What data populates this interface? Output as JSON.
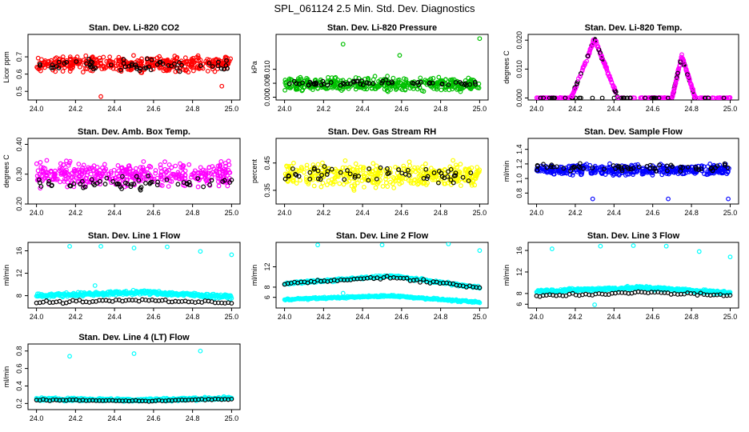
{
  "figure_title": "SPL_061124  2.5 Min. Std. Dev. Diagnostics",
  "colors": {
    "co2": "#ff0000",
    "pressure": "#00c000",
    "temp": "#ff00ff",
    "boxtemp": "#ff00ff",
    "rh": "#ffff00",
    "flow": "#0000ff",
    "line": "#00ffff",
    "highlight": "#000000"
  },
  "chart_data": [
    {
      "id": "co2",
      "type": "scatter",
      "title": "Stan. Dev. Li-820 CO2",
      "ylabel": "Licor ppm",
      "xlim": [
        24.0,
        25.0
      ],
      "ylim": [
        0.45,
        0.83
      ],
      "xticks": [
        24.0,
        24.2,
        24.4,
        24.6,
        24.8,
        25.0
      ],
      "xtick_labels": [
        "24.0",
        "24.2",
        "24.4",
        "24.6",
        "24.8",
        "25.0"
      ],
      "yticks": [
        0.5,
        0.6,
        0.7
      ],
      "ytick_labels": [
        "0.5",
        "0.6",
        "0.7"
      ],
      "color": "co2",
      "series": [
        {
          "name": "main",
          "base": 0.66,
          "spread": 0.06,
          "n": 420
        },
        {
          "name": "highlight",
          "color": "highlight",
          "base": 0.65,
          "spread": 0.05,
          "n": 60
        }
      ],
      "outliers": [
        [
          24.33,
          0.47
        ],
        [
          24.95,
          0.53
        ]
      ]
    },
    {
      "id": "pressure",
      "type": "scatter",
      "title": "Stan. Dev. Li-820 Pressure",
      "ylabel": "kPa",
      "xlim": [
        24.0,
        25.0
      ],
      "ylim": [
        -0.001,
        0.0225
      ],
      "xticks": [
        24.0,
        24.2,
        24.4,
        24.6,
        24.8,
        25.0
      ],
      "xtick_labels": [
        "24.0",
        "24.2",
        "24.4",
        "24.6",
        "24.8",
        "25.0"
      ],
      "yticks": [
        0.0,
        0.005,
        0.01
      ],
      "ytick_labels": [
        "0.000",
        "0.005",
        "0.010"
      ],
      "color": "pressure",
      "series": [
        {
          "name": "main",
          "base": 0.0045,
          "spread": 0.0035,
          "n": 420
        },
        {
          "name": "highlight",
          "color": "highlight",
          "base": 0.005,
          "spread": 0.0015,
          "n": 60
        }
      ],
      "outliers": [
        [
          24.3,
          0.019
        ],
        [
          24.59,
          0.015
        ],
        [
          25.0,
          0.021
        ]
      ]
    },
    {
      "id": "temp",
      "type": "scatter",
      "title": "Stan. Dev. Li-820 Temp.",
      "ylabel": "degrees C",
      "xlim": [
        24.0,
        25.0
      ],
      "ylim": [
        -0.0007,
        0.022
      ],
      "xticks": [
        24.0,
        24.2,
        24.4,
        24.6,
        24.8,
        25.0
      ],
      "xtick_labels": [
        "24.0",
        "24.2",
        "24.4",
        "24.6",
        "24.8",
        "25.0"
      ],
      "yticks": [
        0.0,
        0.01,
        0.02
      ],
      "ytick_labels": [
        "0.000",
        "0.010",
        "0.020"
      ],
      "color": "temp",
      "peaks": [
        {
          "start": 24.18,
          "center": 24.3,
          "end": 24.42,
          "height": 0.0205
        },
        {
          "start": 24.7,
          "center": 24.75,
          "end": 24.82,
          "height": 0.0145
        }
      ],
      "baseline": 0.0
    },
    {
      "id": "boxtemp",
      "type": "scatter",
      "title": "Stan. Dev. Amb. Box Temp.",
      "ylabel": "degrees C",
      "xlim": [
        24.0,
        25.0
      ],
      "ylim": [
        0.2,
        0.42
      ],
      "xticks": [
        24.0,
        24.2,
        24.4,
        24.6,
        24.8,
        25.0
      ],
      "xtick_labels": [
        "24.0",
        "24.2",
        "24.4",
        "24.6",
        "24.8",
        "25.0"
      ],
      "yticks": [
        0.2,
        0.3,
        0.4
      ],
      "ytick_labels": [
        "0.20",
        "0.30",
        "0.40"
      ],
      "color": "boxtemp",
      "series": [
        {
          "name": "main",
          "base": 0.3,
          "spread": 0.055,
          "n": 420
        },
        {
          "name": "highlight",
          "color": "highlight",
          "base": 0.27,
          "spread": 0.03,
          "n": 60
        }
      ]
    },
    {
      "id": "rh",
      "type": "scatter",
      "title": "Stan. Dev. Gas Stream RH",
      "ylabel": "percent",
      "xlim": [
        24.0,
        25.0
      ],
      "ylim": [
        0.3,
        0.54
      ],
      "xticks": [
        24.0,
        24.2,
        24.4,
        24.6,
        24.8,
        25.0
      ],
      "xtick_labels": [
        "24.0",
        "24.2",
        "24.4",
        "24.6",
        "24.8",
        "25.0"
      ],
      "yticks": [
        0.35,
        0.45
      ],
      "ytick_labels": [
        "0.35",
        "0.45"
      ],
      "color": "rh",
      "series": [
        {
          "name": "main",
          "base": 0.405,
          "spread": 0.06,
          "n": 420
        },
        {
          "name": "highlight",
          "color": "highlight",
          "base": 0.41,
          "spread": 0.04,
          "n": 60
        }
      ]
    },
    {
      "id": "sampleflow",
      "type": "scatter",
      "title": "Stan. Dev. Sample Flow",
      "ylabel": "ml/min",
      "xlim": [
        24.0,
        25.0
      ],
      "ylim": [
        0.65,
        1.55
      ],
      "xticks": [
        24.0,
        24.2,
        24.4,
        24.6,
        24.8,
        25.0
      ],
      "xtick_labels": [
        "24.0",
        "24.2",
        "24.4",
        "24.6",
        "24.8",
        "25.0"
      ],
      "yticks": [
        0.8,
        1.0,
        1.2,
        1.4
      ],
      "ytick_labels": [
        "0.8",
        "1.0",
        "1.2",
        "1.4"
      ],
      "color": "flow",
      "series": [
        {
          "name": "main",
          "base": 1.12,
          "spread": 0.1,
          "n": 420
        },
        {
          "name": "highlight",
          "color": "highlight",
          "base": 1.15,
          "spread": 0.08,
          "n": 60
        }
      ],
      "outliers": [
        [
          24.29,
          0.72
        ],
        [
          24.68,
          0.72
        ],
        [
          24.99,
          0.72
        ]
      ]
    },
    {
      "id": "line1",
      "type": "scatter",
      "title": "Stan. Dev. Line 1 Flow",
      "ylabel": "ml/min",
      "xlim": [
        24.0,
        25.0
      ],
      "ylim": [
        5.8,
        17.5
      ],
      "xticks": [
        24.0,
        24.2,
        24.4,
        24.6,
        24.8,
        25.0
      ],
      "xtick_labels": [
        "24.0",
        "24.2",
        "24.4",
        "24.6",
        "24.8",
        "25.0"
      ],
      "yticks": [
        8,
        12,
        16
      ],
      "ytick_labels": [
        "8",
        "12",
        "16"
      ],
      "color": "line",
      "bands": [
        {
          "color": "line",
          "y0": 8.0,
          "ymid": 8.6,
          "y1": 7.8,
          "spread": 0.5,
          "n": 380
        }
      ],
      "trend": {
        "color": "highlight",
        "y0": 6.8,
        "ymid": 7.2,
        "y1": 6.7,
        "n": 60
      },
      "outliers": [
        [
          24.17,
          16.8
        ],
        [
          24.33,
          16.8
        ],
        [
          24.5,
          16.5
        ],
        [
          24.67,
          16.7
        ],
        [
          24.84,
          15.9
        ],
        [
          25.0,
          15.3
        ],
        [
          24.3,
          9.8
        ]
      ]
    },
    {
      "id": "line2",
      "type": "scatter",
      "title": "Stan. Dev. Line 2 Flow",
      "ylabel": "ml/min",
      "xlim": [
        24.0,
        25.0
      ],
      "ylim": [
        3.9,
        16.8
      ],
      "xticks": [
        24.0,
        24.2,
        24.4,
        24.6,
        24.8,
        25.0
      ],
      "xtick_labels": [
        "24.0",
        "24.2",
        "24.4",
        "24.6",
        "24.8",
        "25.0"
      ],
      "yticks": [
        6,
        8,
        12
      ],
      "ytick_labels": [
        "6",
        "8",
        "12"
      ],
      "color": "line",
      "bands": [
        {
          "color": "line",
          "y0": 8.7,
          "ymid": 10.2,
          "y1": 7.9,
          "spread": 0.35,
          "n": 260
        },
        {
          "color": "line",
          "y0": 5.6,
          "ymid": 6.3,
          "y1": 5.0,
          "spread": 0.25,
          "n": 260
        }
      ],
      "trend": {
        "color": "highlight",
        "y0": 8.7,
        "ymid": 10.0,
        "y1": 7.9,
        "n": 60
      },
      "outliers": [
        [
          24.17,
          16.3
        ],
        [
          24.5,
          16.3
        ],
        [
          24.84,
          16.5
        ],
        [
          25.0,
          15.2
        ],
        [
          24.3,
          6.8
        ]
      ]
    },
    {
      "id": "line3",
      "type": "scatter",
      "title": "Stan. Dev. Line 3 Flow",
      "ylabel": "ml/min",
      "xlim": [
        24.0,
        25.0
      ],
      "ylim": [
        5.3,
        17.5
      ],
      "xticks": [
        24.0,
        24.2,
        24.4,
        24.6,
        24.8,
        25.0
      ],
      "xtick_labels": [
        "24.0",
        "24.2",
        "24.4",
        "24.6",
        "24.8",
        "25.0"
      ],
      "yticks": [
        6,
        8,
        12,
        16
      ],
      "ytick_labels": [
        "6",
        "8",
        "12",
        "16"
      ],
      "color": "line",
      "bands": [
        {
          "color": "line",
          "y0": 8.4,
          "ymid": 9.1,
          "y1": 8.1,
          "spread": 0.45,
          "n": 380
        }
      ],
      "trend": {
        "color": "highlight",
        "y0": 7.6,
        "ymid": 8.2,
        "y1": 7.6,
        "n": 60
      },
      "outliers": [
        [
          24.08,
          16.3
        ],
        [
          24.33,
          16.8
        ],
        [
          24.5,
          16.9
        ],
        [
          24.67,
          16.8
        ],
        [
          24.84,
          15.8
        ],
        [
          25.0,
          14.8
        ],
        [
          24.3,
          5.9
        ]
      ]
    },
    {
      "id": "line4",
      "type": "scatter",
      "title": "Stan. Dev. Line 4 (LT) Flow",
      "ylabel": "ml/min",
      "xlim": [
        24.0,
        25.0
      ],
      "ylim": [
        0.13,
        0.88
      ],
      "xticks": [
        24.0,
        24.2,
        24.4,
        24.6,
        24.8,
        25.0
      ],
      "xtick_labels": [
        "24.0",
        "24.2",
        "24.4",
        "24.6",
        "24.8",
        "25.0"
      ],
      "yticks": [
        0.2,
        0.4,
        0.6,
        0.8
      ],
      "ytick_labels": [
        "0.2",
        "0.4",
        "0.6",
        "0.8"
      ],
      "color": "line",
      "bands": [
        {
          "color": "line",
          "y0": 0.25,
          "ymid": 0.24,
          "y1": 0.26,
          "spread": 0.025,
          "n": 380
        }
      ],
      "trend": {
        "color": "highlight",
        "y0": 0.24,
        "ymid": 0.23,
        "y1": 0.25,
        "n": 60
      },
      "outliers": [
        [
          24.17,
          0.74
        ],
        [
          24.5,
          0.77
        ],
        [
          24.84,
          0.8
        ]
      ]
    }
  ]
}
